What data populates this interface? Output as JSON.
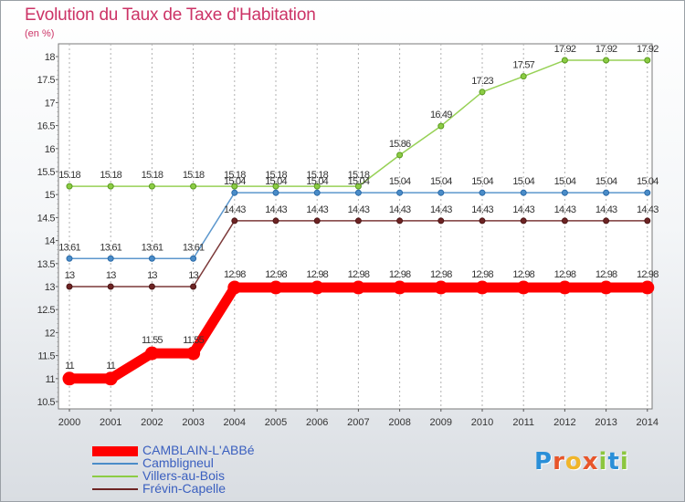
{
  "chart_data": {
    "type": "line",
    "title": "Evolution du Taux de Taxe d'Habitation",
    "subtitle": "(en %)",
    "x": [
      "2000",
      "2001",
      "2002",
      "2003",
      "2004",
      "2005",
      "2006",
      "2007",
      "2008",
      "2009",
      "2010",
      "2011",
      "2012",
      "2013",
      "2014"
    ],
    "ylim": [
      10.5,
      18
    ],
    "yticks": [
      "10.5",
      "11",
      "11.5",
      "12",
      "12.5",
      "13",
      "13.5",
      "14",
      "14.5",
      "15",
      "15.5",
      "16",
      "16.5",
      "17",
      "17.5",
      "18"
    ],
    "grid": true,
    "legend_position": "bottom-left",
    "series": [
      {
        "name": "CAMBLAIN-L'ABBé",
        "color": "#ff0000",
        "values": [
          11,
          11,
          11.55,
          11.55,
          12.98,
          12.98,
          12.98,
          12.98,
          12.98,
          12.98,
          12.98,
          12.98,
          12.98,
          12.98,
          12.98
        ]
      },
      {
        "name": "Cambligneul",
        "color": "#4a8cc8",
        "values": [
          13.61,
          13.61,
          13.61,
          13.61,
          15.04,
          15.04,
          15.04,
          15.04,
          15.04,
          15.04,
          15.04,
          15.04,
          15.04,
          15.04,
          15.04
        ]
      },
      {
        "name": "Villers-au-Bois",
        "color": "#8ccc44",
        "values": [
          15.18,
          15.18,
          15.18,
          15.18,
          15.18,
          15.18,
          15.18,
          15.18,
          15.86,
          16.49,
          17.23,
          17.57,
          17.92,
          17.92,
          17.92
        ]
      },
      {
        "name": "Frévin-Capelle",
        "color": "#6e2424",
        "values": [
          13,
          13,
          13,
          13,
          14.43,
          14.43,
          14.43,
          14.43,
          14.43,
          14.43,
          14.43,
          14.43,
          14.43,
          14.43,
          14.43
        ]
      }
    ]
  },
  "logo": {
    "letters": [
      "P",
      "r",
      "o",
      "x",
      "i",
      "t",
      "i"
    ],
    "colors": [
      "#2a8fd8",
      "#e8552a",
      "#f0b52a",
      "#e8552a",
      "#8cc63f",
      "#2a8fd8",
      "#8cc63f"
    ]
  }
}
